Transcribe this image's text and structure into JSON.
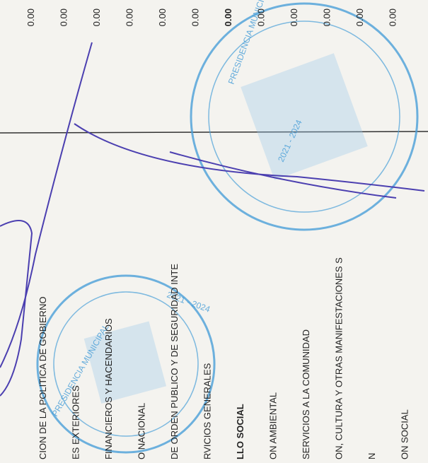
{
  "table": {
    "rows": [
      {
        "label": "CION DE LA POLITICA DE GOBIERNO",
        "value": "0.00"
      },
      {
        "label": "ES EXTERIORES",
        "value": "0.00"
      },
      {
        "label": "FINANCIEROS Y HACENDARIOS",
        "value": "0.00"
      },
      {
        "label": "O NACIONAL",
        "value": "0.00"
      },
      {
        "label": "DE ORDEN PUBLICO Y DE SEGURIDAD INTE",
        "value": "0.00"
      },
      {
        "label": "RVICIOS GENERALES",
        "value": "0.00"
      },
      {
        "label": "LLO SOCIAL",
        "value": "0.00",
        "bold": true
      },
      {
        "label": "ON AMBIENTAL",
        "value": "0.00"
      },
      {
        "label": "SERVICIOS A LA COMUNIDAD",
        "value": "0.00"
      },
      {
        "label": "ON, CULTURA Y OTRAS MANIFESTACIONES S",
        "value": "0.00"
      },
      {
        "label": "N",
        "value": "0.00"
      },
      {
        "label": "ON SOCIAL",
        "value": "0.00"
      }
    ]
  },
  "stamps": {
    "upper": {
      "ring": "PRESIDENCIA MUNICIPAL",
      "years": "2021 - 2024"
    },
    "lower": {
      "ring": "PRESIDENCIA MUNICIPAL",
      "years": "2021 - 2024"
    }
  }
}
